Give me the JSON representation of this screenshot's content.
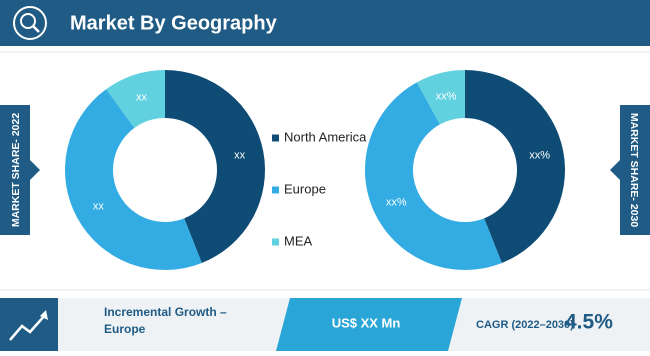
{
  "header": {
    "title": "Market By Geography"
  },
  "chart_data": [
    {
      "type": "donut",
      "side_label": "MARKET SHARE- 2022",
      "categories": [
        "North America",
        "Europe",
        "MEA"
      ],
      "values": [
        44,
        46,
        10
      ],
      "value_labels": [
        "xx",
        "xx",
        "xx"
      ],
      "colors": [
        "#0f4c75",
        "#33ace3",
        "#62d1df"
      ]
    },
    {
      "type": "donut",
      "side_label": "MARKET SHARE- 2030",
      "categories": [
        "North America",
        "Europe",
        "MEA"
      ],
      "values": [
        44,
        48,
        8
      ],
      "value_labels": [
        "xx%",
        "xx%",
        "xx%"
      ],
      "colors": [
        "#0f4c75",
        "#33ace3",
        "#62d1df"
      ]
    }
  ],
  "footer": {
    "growth_label": "Incremental Growth – Europe",
    "growth_value": "US$ XX Mn",
    "cagr_label": "CAGR (2022–2030)",
    "cagr_value": "4.5%"
  }
}
